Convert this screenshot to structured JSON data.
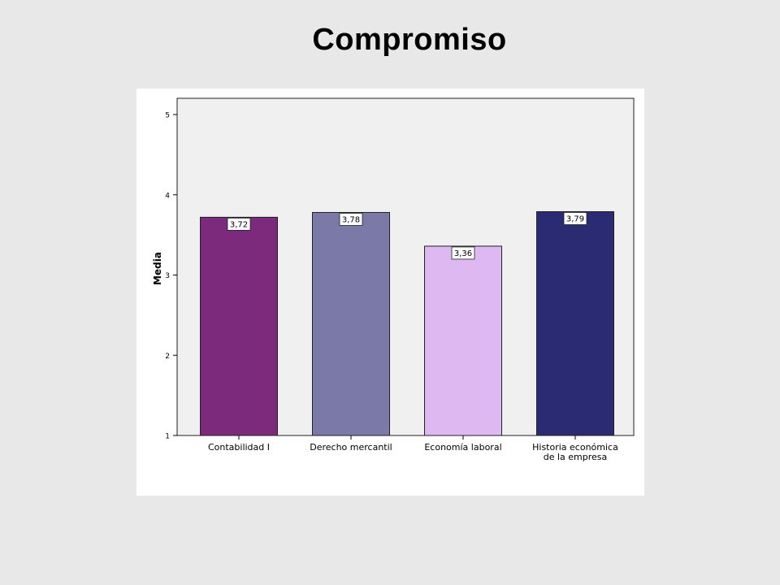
{
  "slide": {
    "title": "Compromiso"
  },
  "chart_data": {
    "type": "bar",
    "title": "Compromiso",
    "xlabel": "",
    "ylabel": "Media",
    "categories": [
      [
        "Contabilidad I"
      ],
      [
        "Derecho mercantil"
      ],
      [
        "Economía laboral"
      ],
      [
        "Historia económica",
        "de la empresa"
      ]
    ],
    "values": [
      3.72,
      3.78,
      3.36,
      3.79
    ],
    "value_labels": [
      "3,72",
      "3,78",
      "3,36",
      "3,79"
    ],
    "bar_colors": [
      "#7b2a7c",
      "#7a79a7",
      "#deb8f0",
      "#2b2b73"
    ],
    "ylim": [
      1,
      5
    ],
    "yticks": [
      1,
      2,
      3,
      4,
      5
    ],
    "ytick_labels": [
      "1",
      "2",
      "3",
      "4",
      "5"
    ],
    "plot_background": "#f0f0f0",
    "grid": false
  }
}
